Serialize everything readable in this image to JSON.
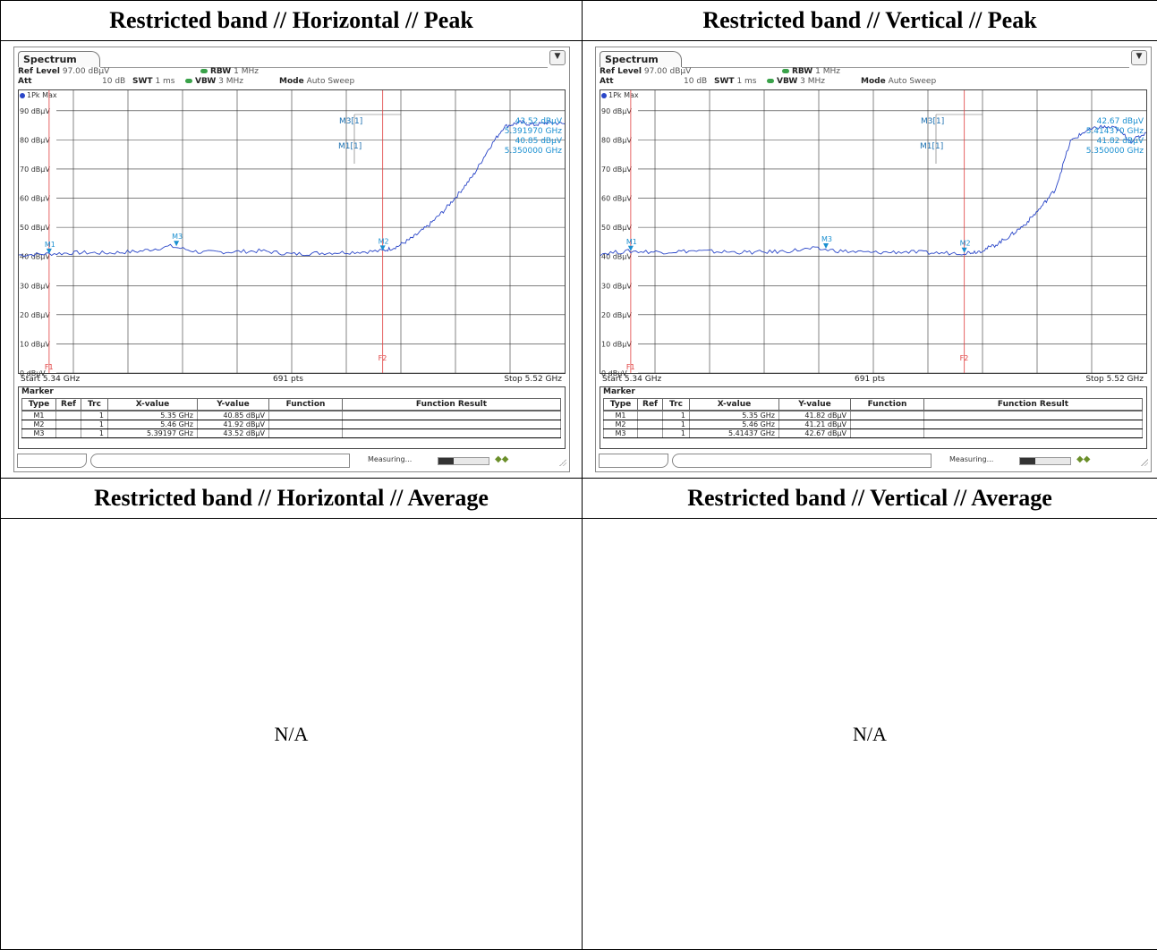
{
  "headers": {
    "h_peak": "Restricted band // Horizontal // Peak",
    "v_peak": "Restricted band // Vertical // Peak",
    "h_avg": "Restricted band // Horizontal // Average",
    "v_avg": "Restricted band // Vertical // Average"
  },
  "na_text": "N/A",
  "common": {
    "tab": "Spectrum",
    "ref_level_label": "Ref Level",
    "ref_level_value": "97.00 dBµV",
    "att_label": "Att",
    "att_value": "10 dB",
    "swt_label": "SWT",
    "swt_value": "1 ms",
    "rbw_label": "RBW",
    "rbw_value": "1 MHz",
    "vbw_label": "VBW",
    "vbw_value": "3 MHz",
    "mode_label": "Mode",
    "mode_value": "Auto Sweep",
    "trace_label": "1Pk Max",
    "start": "Start 5.34 GHz",
    "pts": "691 pts",
    "stop": "Stop 5.52 GHz",
    "marker_title": "Marker",
    "columns": [
      "Type",
      "Ref",
      "Trc",
      "X-value",
      "Y-value",
      "Function",
      "Function Result"
    ],
    "measuring": "Measuring...",
    "progress": 0.3,
    "y_ticks": [
      "90 dBµV",
      "80 dBµV",
      "70 dBµV",
      "60 dBµV",
      "50 dBµV",
      "40 dBµV",
      "30 dBµV",
      "20 dBµV",
      "10 dBµV",
      "0 dBµV"
    ],
    "m3_label": "M3[1]",
    "m1_label": "M1[1]",
    "f1_label": "F1",
    "f2_label": "F2",
    "colors": {
      "trace": "#2a46c8",
      "marker": "#1a8fd0",
      "fline": "#e04040"
    }
  },
  "panels": [
    {
      "readout": {
        "m3_y": "43.52 dBµV",
        "m3_x": "5.391970 GHz",
        "m1_y": "40.85 dBµV",
        "m1_x": "5.350000 GHz"
      },
      "markers": [
        {
          "type": "M1",
          "ref": "",
          "trc": "1",
          "x": "5.35 GHz",
          "y": "40.85 dBµV",
          "function": "",
          "result": ""
        },
        {
          "type": "M2",
          "ref": "",
          "trc": "1",
          "x": "5.46 GHz",
          "y": "41.92 dBµV",
          "function": "",
          "result": ""
        },
        {
          "type": "M3",
          "ref": "",
          "trc": "1",
          "x": "5.39197 GHz",
          "y": "43.52 dBµV",
          "function": "",
          "result": ""
        }
      ]
    },
    {
      "readout": {
        "m3_y": "42.67 dBµV",
        "m3_x": "5.414370 GHz",
        "m1_y": "41.82 dBµV",
        "m1_x": "5.350000 GHz"
      },
      "markers": [
        {
          "type": "M1",
          "ref": "",
          "trc": "1",
          "x": "5.35 GHz",
          "y": "41.82 dBµV",
          "function": "",
          "result": ""
        },
        {
          "type": "M2",
          "ref": "",
          "trc": "1",
          "x": "5.46 GHz",
          "y": "41.21 dBµV",
          "function": "",
          "result": ""
        },
        {
          "type": "M3",
          "ref": "",
          "trc": "1",
          "x": "5.41437 GHz",
          "y": "42.67 dBµV",
          "function": "",
          "result": ""
        }
      ]
    }
  ],
  "chart_data": [
    {
      "type": "line",
      "title": "Restricted band // Horizontal // Peak",
      "xlabel": "",
      "ylabel": "",
      "x_unit": "GHz",
      "y_unit": "dBµV",
      "xlim": [
        5.34,
        5.52
      ],
      "ylim": [
        0,
        97
      ],
      "grid": true,
      "series": [
        {
          "name": "1Pk Max",
          "x": [
            5.34,
            5.35,
            5.36,
            5.37,
            5.38,
            5.39,
            5.4,
            5.41,
            5.42,
            5.43,
            5.44,
            5.45,
            5.46,
            5.465,
            5.47,
            5.475,
            5.48,
            5.485,
            5.49,
            5.495,
            5.5,
            5.505,
            5.51,
            5.515,
            5.52
          ],
          "y": [
            40.5,
            40.9,
            41.3,
            41.2,
            41.8,
            43.5,
            41.4,
            41.6,
            41.9,
            40.8,
            41.2,
            41.5,
            41.9,
            43.5,
            46.5,
            50.5,
            55.5,
            61.5,
            68.0,
            77.0,
            84.5,
            86.0,
            85.2,
            86.0,
            85.5
          ]
        }
      ],
      "markers": [
        {
          "name": "M1",
          "x": 5.35,
          "y": 40.85
        },
        {
          "name": "M2",
          "x": 5.46,
          "y": 41.92
        },
        {
          "name": "M3",
          "x": 5.39197,
          "y": 43.52
        }
      ],
      "vlines": [
        {
          "name": "F1",
          "x": 5.35
        },
        {
          "name": "F2",
          "x": 5.46
        }
      ]
    },
    {
      "type": "line",
      "title": "Restricted band // Vertical // Peak",
      "xlabel": "",
      "ylabel": "",
      "x_unit": "GHz",
      "y_unit": "dBµV",
      "xlim": [
        5.34,
        5.52
      ],
      "ylim": [
        0,
        97
      ],
      "grid": true,
      "series": [
        {
          "name": "1Pk Max",
          "x": [
            5.34,
            5.35,
            5.36,
            5.37,
            5.38,
            5.39,
            5.4,
            5.41,
            5.42,
            5.43,
            5.44,
            5.45,
            5.46,
            5.465,
            5.47,
            5.475,
            5.48,
            5.485,
            5.49,
            5.495,
            5.5,
            5.505,
            5.51,
            5.515,
            5.52
          ],
          "y": [
            41.0,
            41.8,
            41.5,
            41.9,
            41.6,
            41.4,
            41.7,
            42.7,
            41.8,
            41.3,
            41.6,
            41.2,
            41.2,
            41.8,
            43.8,
            47.0,
            51.0,
            56.5,
            63.0,
            79.5,
            83.0,
            84.5,
            84.0,
            79.5,
            82.5
          ]
        }
      ],
      "markers": [
        {
          "name": "M1",
          "x": 5.35,
          "y": 41.82
        },
        {
          "name": "M2",
          "x": 5.46,
          "y": 41.21
        },
        {
          "name": "M3",
          "x": 5.41437,
          "y": 42.67
        }
      ],
      "vlines": [
        {
          "name": "F1",
          "x": 5.35
        },
        {
          "name": "F2",
          "x": 5.46
        }
      ]
    }
  ]
}
